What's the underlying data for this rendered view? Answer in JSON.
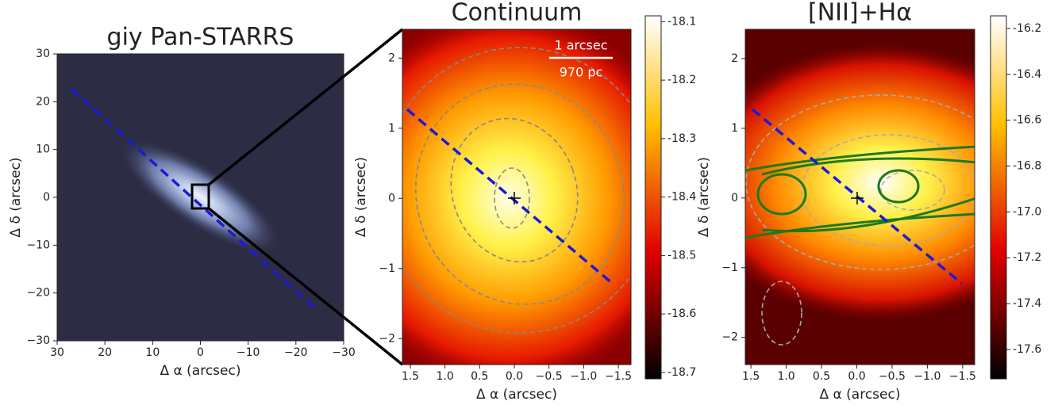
{
  "chart_data": [
    {
      "type": "image",
      "title": "giy Pan-STARRS",
      "xlabel": "Δ α (arcsec)",
      "ylabel": "Δ δ (arcsec)",
      "xlim": [
        30,
        -30
      ],
      "ylim": [
        -30,
        30
      ],
      "xticks": [
        30,
        20,
        10,
        0,
        {
          "value": -10,
          "label": "−10"
        },
        {
          "value": -20,
          "label": "−20"
        },
        {
          "value": -30,
          "label": "−30"
        }
      ],
      "yticks": [
        {
          "value": -30,
          "label": "−30"
        },
        {
          "value": -20,
          "label": "−20"
        },
        {
          "value": -10,
          "label": "−10"
        },
        0,
        10,
        20,
        30
      ]
    },
    {
      "type": "image",
      "title": "Continuum",
      "xlabel": "Δ α (arcsec)",
      "ylabel": "Δ δ (arcsec)",
      "xlim": [
        1.614,
        -1.683
      ],
      "ylim": [
        -2.37,
        2.41
      ],
      "xticks": [
        1.5,
        {
          "value": 1.0,
          "label": "1.0"
        },
        0.5,
        {
          "value": 0.0,
          "label": "0.0"
        },
        {
          "value": -0.5,
          "label": "−0.5"
        },
        {
          "value": -1.0,
          "label": "−1.0"
        },
        {
          "value": -1.5,
          "label": "−1.5"
        }
      ],
      "yticks": [
        {
          "value": -2,
          "label": "−2"
        },
        {
          "value": -1,
          "label": "−1"
        },
        0,
        1,
        2
      ],
      "annotations": [
        "1 arcsec",
        "970 pc"
      ],
      "colorbar": {
        "lim": [
          -18.711,
          -18.09
        ],
        "ticks": [
          -18.1,
          -18.2,
          -18.3,
          -18.4,
          -18.5,
          -18.6,
          -18.7
        ]
      }
    },
    {
      "type": "image",
      "title": "[NII]+Hα",
      "xlabel": "Δ α (arcsec)",
      "ylabel": "Δ δ (arcsec)",
      "xlim": [
        1.58,
        -1.67
      ],
      "ylim": [
        -2.39,
        2.42
      ],
      "xticks": [
        1.5,
        {
          "value": 1.0,
          "label": "1.0"
        },
        0.5,
        {
          "value": 0.0,
          "label": "0.0"
        },
        {
          "value": -0.5,
          "label": "−0.5"
        },
        {
          "value": -1.0,
          "label": "−1.0"
        },
        {
          "value": -1.5,
          "label": "−1.5"
        }
      ],
      "yticks": [
        {
          "value": -2,
          "label": "−2"
        },
        {
          "value": -1,
          "label": "−1"
        },
        0,
        1,
        2
      ],
      "colorbar": {
        "lim": [
          -17.728,
          -16.145
        ],
        "ticks": [
          -16.2,
          -16.4,
          -16.6,
          -16.8,
          {
            "value": -17.0,
            "label": "-17.0"
          },
          -17.2,
          -17.4,
          -17.6
        ]
      }
    }
  ]
}
